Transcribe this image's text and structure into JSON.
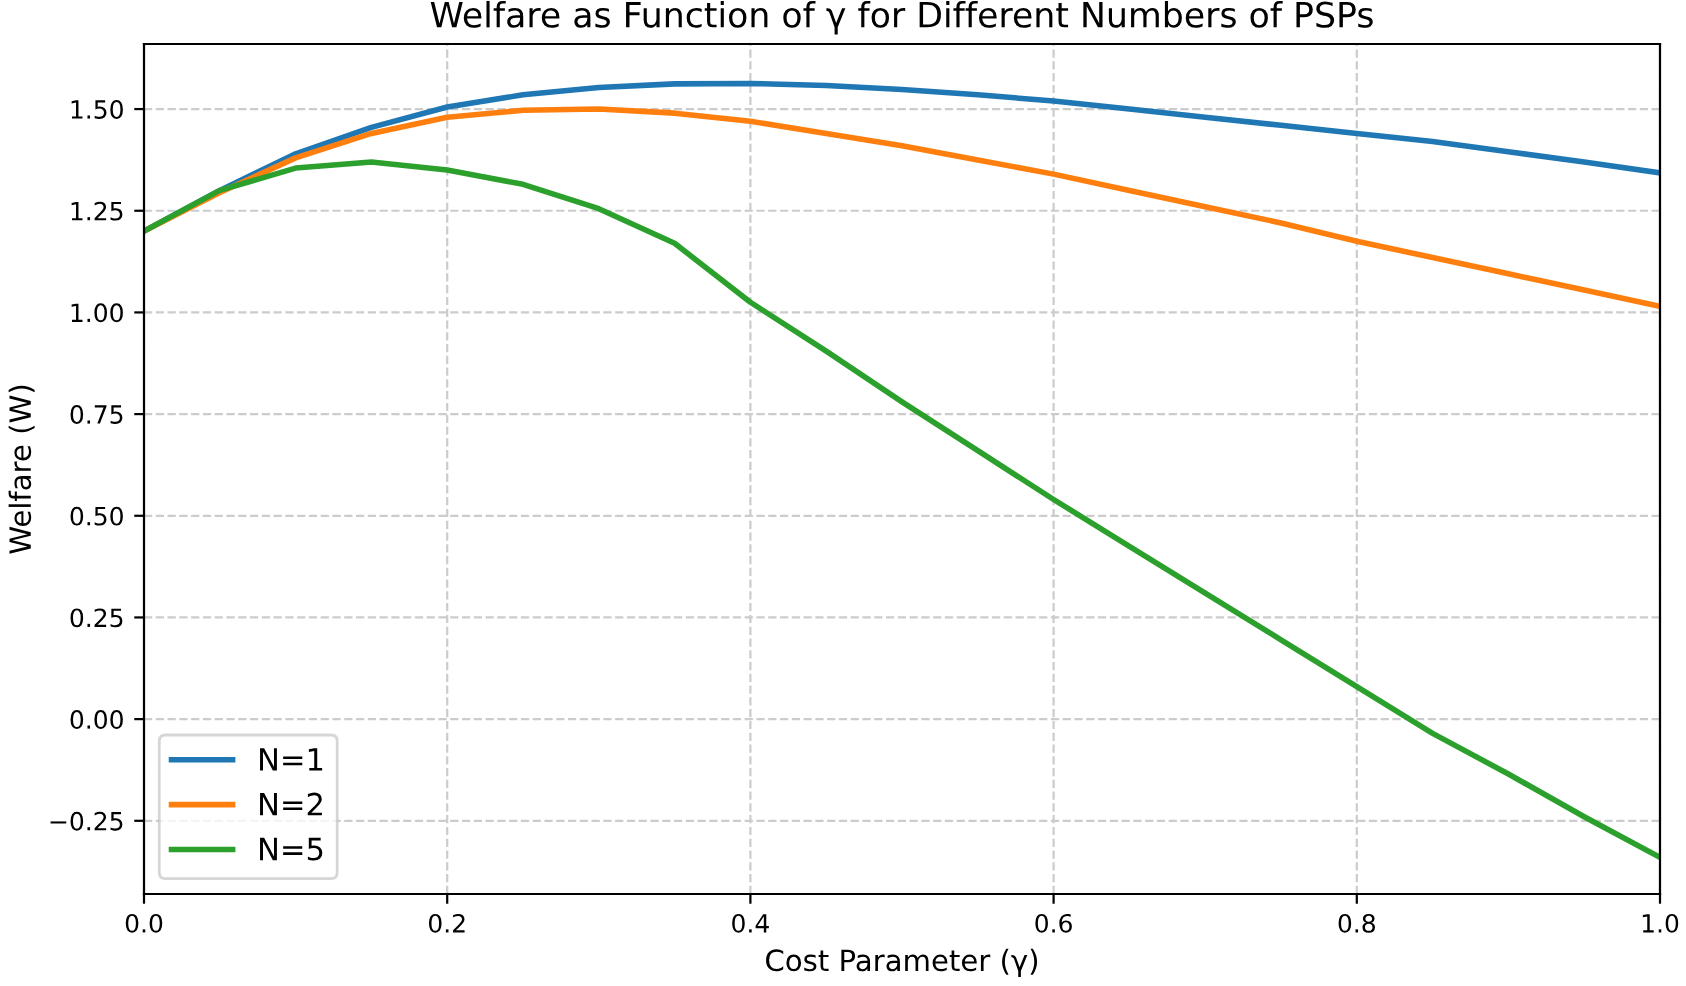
{
  "chart_data": {
    "type": "line",
    "title": "Welfare as Function of γ for Different Numbers of PSPs",
    "xlabel": "Cost Parameter (γ)",
    "ylabel": "Welfare (W)",
    "x": [
      0,
      0.05,
      0.1,
      0.15,
      0.2,
      0.25,
      0.3,
      0.35,
      0.4,
      0.45,
      0.5,
      0.55,
      0.6,
      0.65,
      0.7,
      0.75,
      0.8,
      0.85,
      0.9,
      0.95,
      1.0
    ],
    "series": [
      {
        "name": "N=1",
        "color": "#1f77b4",
        "values": [
          1.2,
          1.3,
          1.39,
          1.455,
          1.505,
          1.535,
          1.553,
          1.562,
          1.563,
          1.558,
          1.548,
          1.535,
          1.52,
          1.5,
          1.48,
          1.46,
          1.44,
          1.42,
          1.395,
          1.37,
          1.343
        ]
      },
      {
        "name": "N=2",
        "color": "#ff7f0e",
        "values": [
          1.2,
          1.295,
          1.38,
          1.44,
          1.48,
          1.497,
          1.5,
          1.49,
          1.47,
          1.44,
          1.41,
          1.375,
          1.34,
          1.3,
          1.26,
          1.22,
          1.175,
          1.135,
          1.095,
          1.055,
          1.015
        ]
      },
      {
        "name": "N=5",
        "color": "#2ca02c",
        "values": [
          1.2,
          1.3,
          1.355,
          1.37,
          1.35,
          1.315,
          1.255,
          1.17,
          1.025,
          0.905,
          0.78,
          0.66,
          0.54,
          0.425,
          0.31,
          0.195,
          0.08,
          -0.035,
          -0.135,
          -0.24,
          -0.34
        ]
      }
    ],
    "xlim": [
      0.0,
      1.0
    ],
    "ylim": [
      -0.43,
      1.66
    ],
    "xticks": [
      {
        "value": 0,
        "label": "0.0"
      },
      0.2,
      0.4,
      0.6,
      0.8,
      {
        "value": 1,
        "label": "1.0"
      }
    ],
    "yticks": [
      {
        "value": -0.25,
        "label": "−0.25"
      },
      {
        "value": 0,
        "label": "0.00"
      },
      0.25,
      {
        "value": 0.5,
        "label": "0.50"
      },
      0.75,
      {
        "value": 1,
        "label": "1.00"
      },
      1.25,
      {
        "value": 1.5,
        "label": "1.50"
      }
    ],
    "grid": true,
    "legend": "bottom left",
    "line_style": "solid",
    "marker": "none"
  }
}
